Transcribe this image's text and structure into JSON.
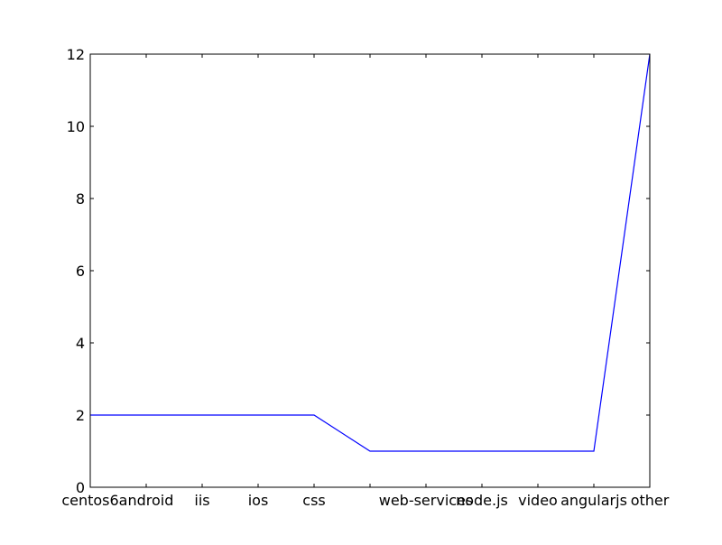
{
  "chart_data": {
    "type": "line",
    "title": "",
    "xlabel": "",
    "ylabel": "",
    "categories": [
      "centos6",
      "android",
      "iis",
      "ios",
      "css",
      "",
      "web-services",
      "node.js",
      "video",
      "angularjs",
      "other"
    ],
    "series": [
      {
        "values": [
          2,
          2,
          2,
          2,
          2,
          1,
          1,
          1,
          1,
          1,
          12
        ],
        "color": "#0000ff"
      }
    ],
    "xlim": [
      0,
      10
    ],
    "ylim": [
      0,
      12
    ],
    "yticks": [
      0,
      2,
      4,
      6,
      8,
      10,
      12
    ],
    "grid": false,
    "legend": "none"
  }
}
